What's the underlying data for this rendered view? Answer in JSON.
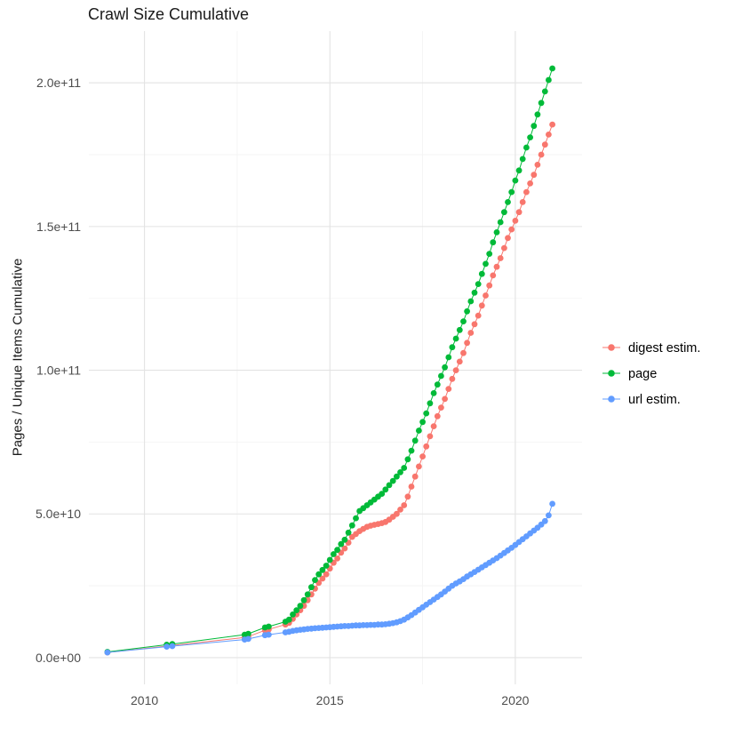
{
  "chart_data": {
    "type": "scatter",
    "title": "Crawl Size Cumulative",
    "xlabel": "",
    "ylabel": "Pages / Unique Items Cumulative",
    "legend_position": "right",
    "grid": true,
    "x_ticks": {
      "values": [
        2010,
        2015,
        2020
      ],
      "labels": [
        "2010",
        "2015",
        "2020"
      ]
    },
    "x_minor": [
      2012.5,
      2017.5
    ],
    "y_ticks": {
      "values_e9": [
        0,
        50,
        100,
        150,
        200
      ],
      "labels": [
        "0.0e+00",
        "5.0e+10",
        "1.0e+11",
        "1.5e+11",
        "2.0e+11"
      ]
    },
    "y_minor_e9": [
      25,
      75,
      125,
      175
    ],
    "xlim": [
      2008.5,
      2021.8
    ],
    "ylim_e9": [
      -9.3,
      218
    ],
    "y_unit": "point values are in units of 1e9 items (billions)",
    "style": {
      "point_radius": 3.4,
      "grid_major": "#e3e3e3",
      "grid_minor": "#f3f3f3",
      "tick_text": "#4d4d4d",
      "title_text": "#1a1a1a",
      "legend_text": "#000000",
      "background": "#ffffff"
    },
    "series": [
      {
        "name": "digest estim.",
        "color": "#F8766D",
        "points": [
          [
            2009,
            1.8
          ],
          [
            2010.6,
            4
          ],
          [
            2010.75,
            4.2
          ],
          [
            2012.7,
            7
          ],
          [
            2012.8,
            7.3
          ],
          [
            2013.25,
            9.5
          ],
          [
            2013.35,
            9.8
          ],
          [
            2013.8,
            11.5
          ],
          [
            2013.9,
            12.1
          ],
          [
            2014,
            13.5
          ],
          [
            2014.1,
            15
          ],
          [
            2014.2,
            16.5
          ],
          [
            2014.3,
            18
          ],
          [
            2014.4,
            20
          ],
          [
            2014.5,
            22
          ],
          [
            2014.6,
            24
          ],
          [
            2014.7,
            26
          ],
          [
            2014.8,
            27.5
          ],
          [
            2014.9,
            29
          ],
          [
            2015,
            31
          ],
          [
            2015.1,
            33
          ],
          [
            2015.2,
            34.5
          ],
          [
            2015.3,
            36.5
          ],
          [
            2015.4,
            38
          ],
          [
            2015.5,
            40
          ],
          [
            2015.6,
            42
          ],
          [
            2015.7,
            43
          ],
          [
            2015.8,
            44
          ],
          [
            2015.9,
            44.8
          ],
          [
            2016,
            45.5
          ],
          [
            2016.1,
            45.9
          ],
          [
            2016.2,
            46.2
          ],
          [
            2016.3,
            46.5
          ],
          [
            2016.4,
            46.8
          ],
          [
            2016.5,
            47.2
          ],
          [
            2016.6,
            48
          ],
          [
            2016.7,
            49
          ],
          [
            2016.8,
            50
          ],
          [
            2016.9,
            51.5
          ],
          [
            2017,
            53
          ],
          [
            2017.1,
            56
          ],
          [
            2017.2,
            59.5
          ],
          [
            2017.3,
            63
          ],
          [
            2017.4,
            66.5
          ],
          [
            2017.5,
            70
          ],
          [
            2017.6,
            73.5
          ],
          [
            2017.7,
            77
          ],
          [
            2017.8,
            80.5
          ],
          [
            2017.9,
            84
          ],
          [
            2018,
            87
          ],
          [
            2018.1,
            90
          ],
          [
            2018.2,
            93.5
          ],
          [
            2018.3,
            97
          ],
          [
            2018.4,
            100
          ],
          [
            2018.5,
            103
          ],
          [
            2018.6,
            106
          ],
          [
            2018.7,
            109.5
          ],
          [
            2018.8,
            113
          ],
          [
            2018.9,
            116
          ],
          [
            2019,
            119
          ],
          [
            2019.1,
            122.5
          ],
          [
            2019.2,
            126
          ],
          [
            2019.3,
            129.5
          ],
          [
            2019.4,
            133
          ],
          [
            2019.5,
            136
          ],
          [
            2019.6,
            139
          ],
          [
            2019.7,
            142.5
          ],
          [
            2019.8,
            146
          ],
          [
            2019.9,
            149
          ],
          [
            2020,
            152
          ],
          [
            2020.1,
            155
          ],
          [
            2020.2,
            158.5
          ],
          [
            2020.3,
            162
          ],
          [
            2020.4,
            165
          ],
          [
            2020.5,
            168
          ],
          [
            2020.6,
            171.5
          ],
          [
            2020.7,
            175
          ],
          [
            2020.8,
            178.5
          ],
          [
            2020.9,
            182
          ],
          [
            2021,
            185.5
          ]
        ]
      },
      {
        "name": "page",
        "color": "#00BA38",
        "points": [
          [
            2009,
            2
          ],
          [
            2010.6,
            4.5
          ],
          [
            2010.75,
            4.7
          ],
          [
            2012.7,
            8
          ],
          [
            2012.8,
            8.3
          ],
          [
            2013.25,
            10.5
          ],
          [
            2013.35,
            10.8
          ],
          [
            2013.8,
            12.5
          ],
          [
            2013.9,
            13.2
          ],
          [
            2014,
            15
          ],
          [
            2014.1,
            16.5
          ],
          [
            2014.2,
            18
          ],
          [
            2014.3,
            20
          ],
          [
            2014.4,
            22
          ],
          [
            2014.5,
            24.5
          ],
          [
            2014.6,
            27
          ],
          [
            2014.7,
            29
          ],
          [
            2014.8,
            30.5
          ],
          [
            2014.9,
            32
          ],
          [
            2015,
            34
          ],
          [
            2015.1,
            36
          ],
          [
            2015.2,
            37.5
          ],
          [
            2015.3,
            39.5
          ],
          [
            2015.4,
            41
          ],
          [
            2015.5,
            43.5
          ],
          [
            2015.6,
            46
          ],
          [
            2015.7,
            48.5
          ],
          [
            2015.8,
            51
          ],
          [
            2015.9,
            52
          ],
          [
            2016,
            53
          ],
          [
            2016.1,
            54
          ],
          [
            2016.2,
            55
          ],
          [
            2016.3,
            56
          ],
          [
            2016.4,
            57
          ],
          [
            2016.5,
            58.5
          ],
          [
            2016.6,
            60
          ],
          [
            2016.7,
            61.5
          ],
          [
            2016.8,
            63
          ],
          [
            2016.9,
            64.5
          ],
          [
            2017,
            66
          ],
          [
            2017.1,
            69
          ],
          [
            2017.2,
            72
          ],
          [
            2017.3,
            75.5
          ],
          [
            2017.4,
            79
          ],
          [
            2017.5,
            82
          ],
          [
            2017.6,
            85
          ],
          [
            2017.7,
            88.5
          ],
          [
            2017.8,
            92
          ],
          [
            2017.9,
            95
          ],
          [
            2018,
            98
          ],
          [
            2018.1,
            101
          ],
          [
            2018.2,
            104.5
          ],
          [
            2018.3,
            108
          ],
          [
            2018.4,
            111
          ],
          [
            2018.5,
            114
          ],
          [
            2018.6,
            117
          ],
          [
            2018.7,
            120.5
          ],
          [
            2018.8,
            124
          ],
          [
            2018.9,
            127
          ],
          [
            2019,
            130
          ],
          [
            2019.1,
            133.5
          ],
          [
            2019.2,
            137
          ],
          [
            2019.3,
            140.5
          ],
          [
            2019.4,
            144.5
          ],
          [
            2019.5,
            148
          ],
          [
            2019.6,
            151.5
          ],
          [
            2019.7,
            155
          ],
          [
            2019.8,
            158.5
          ],
          [
            2019.9,
            162
          ],
          [
            2020,
            166
          ],
          [
            2020.1,
            169.5
          ],
          [
            2020.2,
            173.5
          ],
          [
            2020.3,
            177.5
          ],
          [
            2020.4,
            181
          ],
          [
            2020.5,
            185
          ],
          [
            2020.6,
            189
          ],
          [
            2020.7,
            193
          ],
          [
            2020.8,
            197
          ],
          [
            2020.9,
            201
          ],
          [
            2021,
            205
          ]
        ]
      },
      {
        "name": "url estim.",
        "color": "#619CFF",
        "points": [
          [
            2009,
            1.8
          ],
          [
            2010.6,
            3.8
          ],
          [
            2010.75,
            4
          ],
          [
            2012.7,
            6.3
          ],
          [
            2012.8,
            6.5
          ],
          [
            2013.25,
            7.8
          ],
          [
            2013.35,
            8
          ],
          [
            2013.8,
            8.8
          ],
          [
            2013.9,
            9
          ],
          [
            2014,
            9.3
          ],
          [
            2014.1,
            9.5
          ],
          [
            2014.2,
            9.7
          ],
          [
            2014.3,
            9.8
          ],
          [
            2014.4,
            10
          ],
          [
            2014.5,
            10.1
          ],
          [
            2014.6,
            10.2
          ],
          [
            2014.7,
            10.3
          ],
          [
            2014.8,
            10.4
          ],
          [
            2014.9,
            10.5
          ],
          [
            2015,
            10.6
          ],
          [
            2015.1,
            10.7
          ],
          [
            2015.2,
            10.8
          ],
          [
            2015.3,
            10.9
          ],
          [
            2015.4,
            11
          ],
          [
            2015.5,
            11
          ],
          [
            2015.6,
            11.1
          ],
          [
            2015.7,
            11.2
          ],
          [
            2015.8,
            11.2
          ],
          [
            2015.9,
            11.3
          ],
          [
            2016,
            11.3
          ],
          [
            2016.1,
            11.4
          ],
          [
            2016.2,
            11.4
          ],
          [
            2016.3,
            11.5
          ],
          [
            2016.4,
            11.5
          ],
          [
            2016.5,
            11.6
          ],
          [
            2016.6,
            11.8
          ],
          [
            2016.7,
            12
          ],
          [
            2016.8,
            12.3
          ],
          [
            2016.9,
            12.7
          ],
          [
            2017,
            13.2
          ],
          [
            2017.1,
            14
          ],
          [
            2017.2,
            14.8
          ],
          [
            2017.3,
            15.7
          ],
          [
            2017.4,
            16.6
          ],
          [
            2017.5,
            17.5
          ],
          [
            2017.6,
            18.4
          ],
          [
            2017.7,
            19.3
          ],
          [
            2017.8,
            20.2
          ],
          [
            2017.9,
            21.1
          ],
          [
            2018,
            22
          ],
          [
            2018.1,
            23
          ],
          [
            2018.2,
            24
          ],
          [
            2018.3,
            25
          ],
          [
            2018.4,
            25.8
          ],
          [
            2018.5,
            26.5
          ],
          [
            2018.6,
            27.3
          ],
          [
            2018.7,
            28.2
          ],
          [
            2018.8,
            29
          ],
          [
            2018.9,
            29.8
          ],
          [
            2019,
            30.6
          ],
          [
            2019.1,
            31.4
          ],
          [
            2019.2,
            32.2
          ],
          [
            2019.3,
            33
          ],
          [
            2019.4,
            33.8
          ],
          [
            2019.5,
            34.6
          ],
          [
            2019.6,
            35.5
          ],
          [
            2019.7,
            36.4
          ],
          [
            2019.8,
            37.3
          ],
          [
            2019.9,
            38.2
          ],
          [
            2020,
            39.2
          ],
          [
            2020.1,
            40.2
          ],
          [
            2020.2,
            41.2
          ],
          [
            2020.3,
            42.2
          ],
          [
            2020.4,
            43.2
          ],
          [
            2020.5,
            44.2
          ],
          [
            2020.6,
            45.2
          ],
          [
            2020.7,
            46.3
          ],
          [
            2020.8,
            47.5
          ],
          [
            2020.9,
            49.5
          ],
          [
            2021,
            53.5
          ]
        ]
      }
    ]
  }
}
